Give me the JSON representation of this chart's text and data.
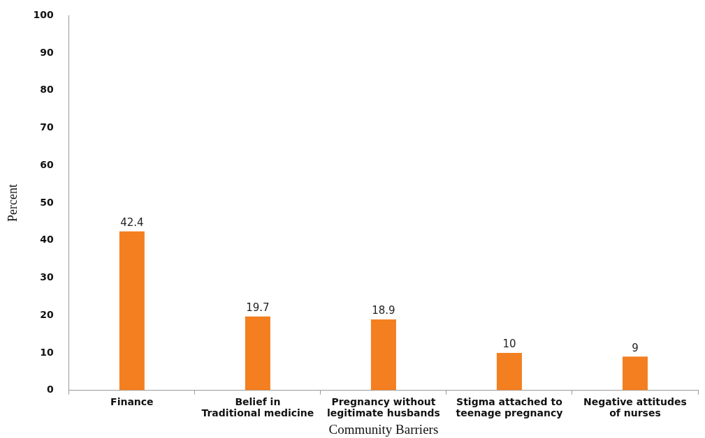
{
  "chart_data": {
    "type": "bar",
    "xlabel": "Community Barriers",
    "ylabel": "Percent",
    "categories": [
      "Finance",
      "Belief in Traditional medicine",
      "Pregnancy without legitimate husbands",
      "Stigma attached to teenage pregnancy",
      "Negative attitudes of nurses"
    ],
    "values": [
      42.4,
      19.7,
      18.9,
      10,
      9
    ],
    "color": "#f47f20",
    "ylim": [
      0,
      100
    ],
    "yticks": [
      0,
      10,
      20,
      30,
      40,
      50,
      60,
      70,
      80,
      90,
      100
    ],
    "grid": false,
    "legend": false,
    "data_labels": true
  }
}
